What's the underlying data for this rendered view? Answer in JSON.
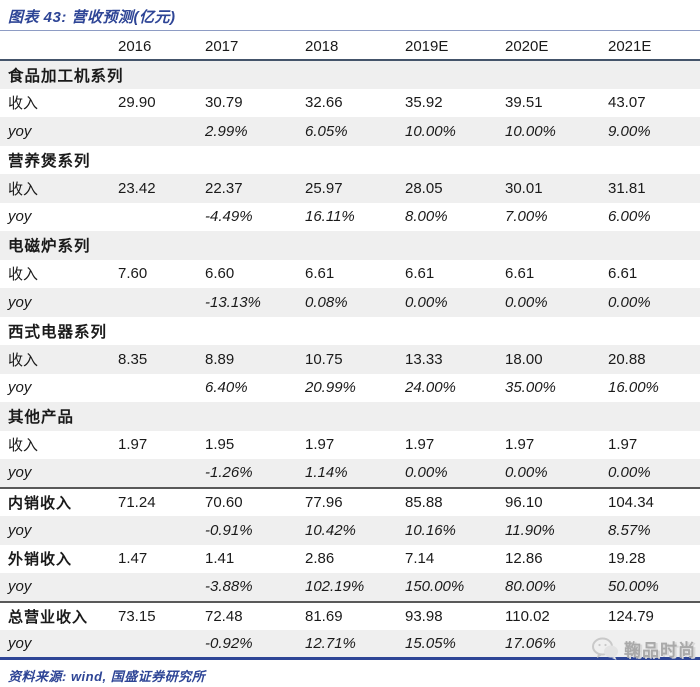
{
  "title": "图表 43: 营收预测(亿元)",
  "source_note": "资料来源: wind, 国盛证券研究所",
  "watermark": {
    "icon": "wechat-icon",
    "text": "鞠品时尚"
  },
  "colors": {
    "accent_blue": "#2e4596",
    "header_rule": "#44546a",
    "title_rule": "#8e9cc4",
    "stripe_gray": "#efefef",
    "dark_separator": "#595959",
    "text": "#1a1a1a",
    "watermark_gray": "#a9a9a9"
  },
  "table": {
    "columns": [
      "",
      "2016",
      "2017",
      "2018",
      "2019E",
      "2020E",
      "2021E"
    ],
    "rows": [
      {
        "type": "section",
        "label": "食品加工机系列",
        "values": [
          "",
          "",
          "",
          "",
          "",
          ""
        ],
        "shaded": true
      },
      {
        "type": "data",
        "label": "收入",
        "values": [
          "29.90",
          "30.79",
          "32.66",
          "35.92",
          "39.51",
          "43.07"
        ],
        "shaded": false
      },
      {
        "type": "yoy",
        "label": "yoy",
        "values": [
          "",
          "2.99%",
          "6.05%",
          "10.00%",
          "10.00%",
          "9.00%"
        ],
        "shaded": true
      },
      {
        "type": "section",
        "label": "营养煲系列",
        "values": [
          "",
          "",
          "",
          "",
          "",
          ""
        ],
        "shaded": false
      },
      {
        "type": "data",
        "label": "收入",
        "values": [
          "23.42",
          "22.37",
          "25.97",
          "28.05",
          "30.01",
          "31.81"
        ],
        "shaded": true
      },
      {
        "type": "yoy",
        "label": "yoy",
        "values": [
          "",
          "-4.49%",
          "16.11%",
          "8.00%",
          "7.00%",
          "6.00%"
        ],
        "shaded": false
      },
      {
        "type": "section",
        "label": "电磁炉系列",
        "values": [
          "",
          "",
          "",
          "",
          "",
          ""
        ],
        "shaded": true
      },
      {
        "type": "data",
        "label": "收入",
        "values": [
          "7.60",
          "6.60",
          "6.61",
          "6.61",
          "6.61",
          "6.61"
        ],
        "shaded": false
      },
      {
        "type": "yoy",
        "label": "yoy",
        "values": [
          "",
          "-13.13%",
          "0.08%",
          "0.00%",
          "0.00%",
          "0.00%"
        ],
        "shaded": true
      },
      {
        "type": "section",
        "label": "西式电器系列",
        "values": [
          "",
          "",
          "",
          "",
          "",
          ""
        ],
        "shaded": false
      },
      {
        "type": "data",
        "label": "收入",
        "values": [
          "8.35",
          "8.89",
          "10.75",
          "13.33",
          "18.00",
          "20.88"
        ],
        "shaded": true
      },
      {
        "type": "yoy",
        "label": "yoy",
        "values": [
          "",
          "6.40%",
          "20.99%",
          "24.00%",
          "35.00%",
          "16.00%"
        ],
        "shaded": false
      },
      {
        "type": "section",
        "label": "其他产品",
        "values": [
          "",
          "",
          "",
          "",
          "",
          ""
        ],
        "shaded": true
      },
      {
        "type": "data",
        "label": "收入",
        "values": [
          "1.97",
          "1.95",
          "1.97",
          "1.97",
          "1.97",
          "1.97"
        ],
        "shaded": false
      },
      {
        "type": "yoy",
        "label": "yoy",
        "values": [
          "",
          "-1.26%",
          "1.14%",
          "0.00%",
          "0.00%",
          "0.00%"
        ],
        "shaded": true,
        "border_bottom": "dark"
      },
      {
        "type": "data",
        "label": "内销收入",
        "values": [
          "71.24",
          "70.60",
          "77.96",
          "85.88",
          "96.10",
          "104.34"
        ],
        "shaded": false,
        "bold_label": true
      },
      {
        "type": "yoy",
        "label": "yoy",
        "values": [
          "",
          "-0.91%",
          "10.42%",
          "10.16%",
          "11.90%",
          "8.57%"
        ],
        "shaded": true
      },
      {
        "type": "data",
        "label": "外销收入",
        "values": [
          "1.47",
          "1.41",
          "2.86",
          "7.14",
          "12.86",
          "19.28"
        ],
        "shaded": false,
        "bold_label": true
      },
      {
        "type": "yoy",
        "label": "yoy",
        "values": [
          "",
          "-3.88%",
          "102.19%",
          "150.00%",
          "80.00%",
          "50.00%"
        ],
        "shaded": true,
        "border_bottom": "dark"
      },
      {
        "type": "data",
        "label": "总营业收入",
        "values": [
          "73.15",
          "72.48",
          "81.69",
          "93.98",
          "110.02",
          "124.79"
        ],
        "shaded": false,
        "bold_label": true
      },
      {
        "type": "yoy",
        "label": "yoy",
        "values": [
          "",
          "-0.92%",
          "12.71%",
          "15.05%",
          "17.06%",
          ""
        ],
        "shaded": true,
        "border_bottom": "blue"
      }
    ]
  }
}
